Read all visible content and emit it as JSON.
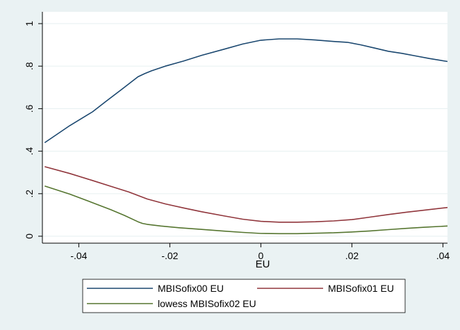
{
  "chart_data": {
    "type": "line",
    "title": "",
    "xlabel": "EU",
    "ylabel": "",
    "xlim": [
      -0.048,
      0.041
    ],
    "ylim": [
      0,
      1
    ],
    "x_ticks": [
      {
        "value": -0.04,
        "label": "-.04"
      },
      {
        "value": -0.02,
        "label": "-.02"
      },
      {
        "value": 0,
        "label": "0"
      },
      {
        "value": 0.02,
        "label": ".02"
      },
      {
        "value": 0.04,
        "label": ".04"
      }
    ],
    "y_ticks": [
      {
        "value": 0,
        "label": "0"
      },
      {
        "value": 0.2,
        "label": ".2"
      },
      {
        "value": 0.4,
        "label": ".4"
      },
      {
        "value": 0.6,
        "label": ".6"
      },
      {
        "value": 0.8,
        "label": ".8"
      },
      {
        "value": 1,
        "label": "1"
      }
    ],
    "grid": "horizontal",
    "legend_position": "bottom",
    "series": [
      {
        "name": "MBISofix00 EU",
        "color": "#1a476f",
        "x": [
          -0.0475,
          -0.042,
          -0.037,
          -0.034,
          -0.03,
          -0.027,
          -0.0255,
          -0.024,
          -0.021,
          -0.017,
          -0.013,
          -0.008,
          -0.004,
          0.0,
          0.004,
          0.008,
          0.012,
          0.016,
          0.019,
          0.022,
          0.025,
          0.028,
          0.031,
          0.034,
          0.037,
          0.041
        ],
        "y": [
          0.44,
          0.52,
          0.585,
          0.635,
          0.7,
          0.75,
          0.765,
          0.778,
          0.8,
          0.824,
          0.851,
          0.88,
          0.904,
          0.922,
          0.928,
          0.928,
          0.923,
          0.916,
          0.912,
          0.9,
          0.885,
          0.87,
          0.86,
          0.848,
          0.836,
          0.822
        ]
      },
      {
        "name": "MBISofix01 EU",
        "color": "#90353b",
        "x": [
          -0.0475,
          -0.042,
          -0.037,
          -0.033,
          -0.029,
          -0.025,
          -0.021,
          -0.017,
          -0.013,
          -0.008,
          -0.004,
          0.0,
          0.004,
          0.008,
          0.012,
          0.016,
          0.02,
          0.024,
          0.028,
          0.032,
          0.036,
          0.041
        ],
        "y": [
          0.327,
          0.295,
          0.262,
          0.235,
          0.208,
          0.175,
          0.152,
          0.133,
          0.115,
          0.095,
          0.08,
          0.07,
          0.066,
          0.066,
          0.068,
          0.072,
          0.078,
          0.09,
          0.102,
          0.113,
          0.123,
          0.135
        ]
      },
      {
        "name": "lowess MBISofix02 EU",
        "color": "#55752f",
        "x": [
          -0.0475,
          -0.042,
          -0.037,
          -0.033,
          -0.03,
          -0.027,
          -0.026,
          -0.025,
          -0.022,
          -0.018,
          -0.013,
          -0.008,
          -0.004,
          0.0,
          0.004,
          0.008,
          0.012,
          0.016,
          0.02,
          0.024,
          0.028,
          0.032,
          0.036,
          0.041
        ],
        "y": [
          0.236,
          0.198,
          0.158,
          0.125,
          0.098,
          0.068,
          0.06,
          0.056,
          0.048,
          0.04,
          0.032,
          0.024,
          0.018,
          0.013,
          0.012,
          0.012,
          0.014,
          0.016,
          0.02,
          0.025,
          0.031,
          0.037,
          0.042,
          0.048
        ]
      }
    ]
  }
}
